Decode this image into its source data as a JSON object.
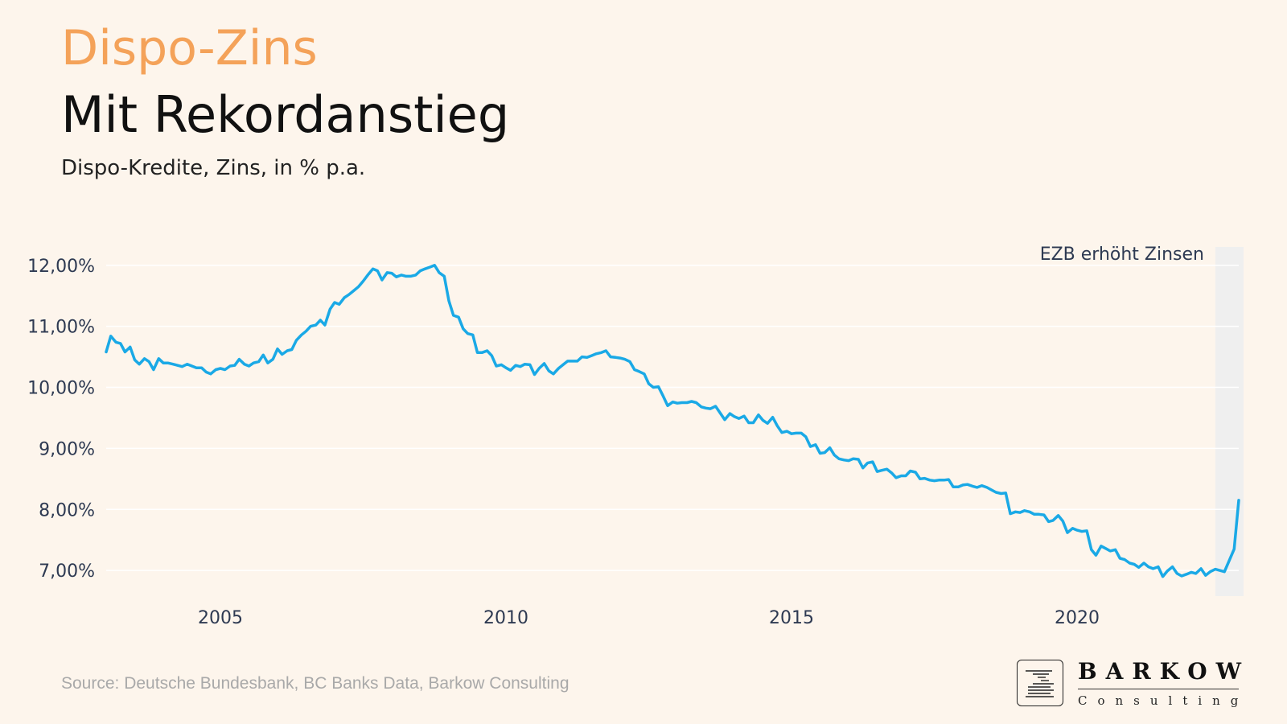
{
  "header": {
    "kicker": "Dispo-Zins",
    "title": "Mit Rekordanstieg",
    "subtitle": "Dispo-Kredite, Zins, in % p.a."
  },
  "footer": {
    "source": "Source: Deutsche Bundesbank, BC Banks Data, Barkow Consulting"
  },
  "logo": {
    "name": "BARKOW",
    "sub": "Consulting"
  },
  "colors": {
    "line": "#1aa9e6",
    "kicker": "#f4a259",
    "band": "#efefef",
    "background": "#fdf5ec",
    "axis_text": "#2e3a52"
  },
  "chart_data": {
    "type": "line",
    "title": "Mit Rekordanstieg",
    "subtitle": "Dispo-Kredite, Zins, in % p.a.",
    "xlabel": "",
    "ylabel": "",
    "xlim": [
      2003.0,
      2022.83
    ],
    "ylim": [
      6.58,
      12.3
    ],
    "yticks": [
      7,
      8,
      9,
      10,
      11,
      12
    ],
    "ytick_labels": [
      "7,00%",
      "8,00%",
      "9,00%",
      "10,00%",
      "11,00%",
      "12,00%"
    ],
    "xticks": [
      2005,
      2010,
      2015,
      2020
    ],
    "xtick_labels": [
      "2005",
      "2010",
      "2015",
      "2020"
    ],
    "grid": true,
    "annotation": {
      "text": "EZB erhöht Zinsen",
      "band_start": 2022.42,
      "band_end": 2022.83
    },
    "series": [
      {
        "name": "Dispo-Zins",
        "x": [
          2003.0,
          2003.08,
          2003.17,
          2003.25,
          2003.33,
          2003.42,
          2003.5,
          2003.58,
          2003.67,
          2003.75,
          2003.83,
          2003.92,
          2004.0,
          2004.08,
          2004.17,
          2004.25,
          2004.33,
          2004.42,
          2004.5,
          2004.58,
          2004.67,
          2004.75,
          2004.83,
          2004.92,
          2005.0,
          2005.08,
          2005.17,
          2005.25,
          2005.33,
          2005.42,
          2005.5,
          2005.58,
          2005.67,
          2005.75,
          2005.83,
          2005.92,
          2006.0,
          2006.08,
          2006.17,
          2006.25,
          2006.33,
          2006.42,
          2006.5,
          2006.58,
          2006.67,
          2006.75,
          2006.83,
          2006.92,
          2007.0,
          2007.08,
          2007.17,
          2007.25,
          2007.33,
          2007.42,
          2007.5,
          2007.58,
          2007.67,
          2007.75,
          2007.83,
          2007.92,
          2008.0,
          2008.08,
          2008.17,
          2008.25,
          2008.33,
          2008.42,
          2008.5,
          2008.58,
          2008.67,
          2008.75,
          2008.83,
          2008.92,
          2009.0,
          2009.08,
          2009.17,
          2009.25,
          2009.33,
          2009.42,
          2009.5,
          2009.58,
          2009.67,
          2009.75,
          2009.83,
          2009.92,
          2010.0,
          2010.08,
          2010.17,
          2010.25,
          2010.33,
          2010.42,
          2010.5,
          2010.58,
          2010.67,
          2010.75,
          2010.83,
          2010.92,
          2011.0,
          2011.08,
          2011.17,
          2011.25,
          2011.33,
          2011.42,
          2011.5,
          2011.58,
          2011.67,
          2011.75,
          2011.83,
          2011.92,
          2012.0,
          2012.08,
          2012.17,
          2012.25,
          2012.33,
          2012.42,
          2012.5,
          2012.58,
          2012.67,
          2012.75,
          2012.83,
          2012.92,
          2013.0,
          2013.08,
          2013.17,
          2013.25,
          2013.33,
          2013.42,
          2013.5,
          2013.58,
          2013.67,
          2013.75,
          2013.83,
          2013.92,
          2014.0,
          2014.08,
          2014.17,
          2014.25,
          2014.33,
          2014.42,
          2014.5,
          2014.58,
          2014.67,
          2014.75,
          2014.83,
          2014.92,
          2015.0,
          2015.08,
          2015.17,
          2015.25,
          2015.33,
          2015.42,
          2015.5,
          2015.58,
          2015.67,
          2015.75,
          2015.83,
          2015.92,
          2016.0,
          2016.08,
          2016.17,
          2016.25,
          2016.33,
          2016.42,
          2016.5,
          2016.58,
          2016.67,
          2016.75,
          2016.83,
          2016.92,
          2017.0,
          2017.08,
          2017.17,
          2017.25,
          2017.33,
          2017.42,
          2017.5,
          2017.58,
          2017.67,
          2017.75,
          2017.83,
          2017.92,
          2018.0,
          2018.08,
          2018.17,
          2018.25,
          2018.33,
          2018.42,
          2018.5,
          2018.58,
          2018.67,
          2018.75,
          2018.83,
          2018.92,
          2019.0,
          2019.08,
          2019.17,
          2019.25,
          2019.33,
          2019.42,
          2019.5,
          2019.58,
          2019.67,
          2019.75,
          2019.83,
          2019.92,
          2020.0,
          2020.08,
          2020.17,
          2020.25,
          2020.33,
          2020.42,
          2020.5,
          2020.58,
          2020.67,
          2020.75,
          2020.83,
          2020.92,
          2021.0,
          2021.08,
          2021.17,
          2021.25,
          2021.33,
          2021.42,
          2021.5,
          2021.58,
          2021.67,
          2021.75,
          2021.83,
          2021.92,
          2022.0,
          2022.08,
          2022.17,
          2022.25,
          2022.33,
          2022.42,
          2022.58,
          2022.75,
          2022.83
        ],
        "values": [
          10.58,
          10.84,
          10.74,
          10.72,
          10.58,
          10.66,
          10.45,
          10.38,
          10.47,
          10.42,
          10.29,
          10.47,
          10.4,
          10.4,
          10.38,
          10.36,
          10.34,
          10.38,
          10.35,
          10.32,
          10.32,
          10.25,
          10.22,
          10.29,
          10.31,
          10.29,
          10.35,
          10.36,
          10.46,
          10.38,
          10.35,
          10.4,
          10.42,
          10.53,
          10.4,
          10.46,
          10.63,
          10.54,
          10.6,
          10.62,
          10.77,
          10.86,
          10.92,
          11.0,
          11.02,
          11.1,
          11.02,
          11.28,
          11.39,
          11.36,
          11.47,
          11.52,
          11.58,
          11.65,
          11.74,
          11.84,
          11.94,
          11.91,
          11.76,
          11.88,
          11.87,
          11.81,
          11.84,
          11.82,
          11.82,
          11.84,
          11.91,
          11.94,
          11.97,
          12.0,
          11.88,
          11.82,
          11.42,
          11.18,
          11.15,
          10.96,
          10.88,
          10.86,
          10.57,
          10.57,
          10.6,
          10.52,
          10.35,
          10.37,
          10.32,
          10.28,
          10.36,
          10.34,
          10.38,
          10.37,
          10.21,
          10.31,
          10.39,
          10.27,
          10.22,
          10.31,
          10.37,
          10.43,
          10.43,
          10.43,
          10.5,
          10.49,
          10.52,
          10.55,
          10.57,
          10.6,
          10.5,
          10.49,
          10.48,
          10.46,
          10.42,
          10.29,
          10.26,
          10.22,
          10.06,
          10.0,
          10.01,
          9.86,
          9.7,
          9.76,
          9.74,
          9.75,
          9.75,
          9.77,
          9.75,
          9.68,
          9.66,
          9.65,
          9.69,
          9.58,
          9.47,
          9.57,
          9.52,
          9.49,
          9.53,
          9.42,
          9.42,
          9.55,
          9.46,
          9.41,
          9.51,
          9.37,
          9.26,
          9.28,
          9.24,
          9.25,
          9.25,
          9.19,
          9.03,
          9.06,
          8.92,
          8.93,
          9.01,
          8.89,
          8.83,
          8.81,
          8.8,
          8.83,
          8.82,
          8.68,
          8.76,
          8.78,
          8.62,
          8.64,
          8.66,
          8.6,
          8.52,
          8.55,
          8.55,
          8.63,
          8.61,
          8.5,
          8.51,
          8.48,
          8.47,
          8.48,
          8.48,
          8.49,
          8.37,
          8.37,
          8.4,
          8.41,
          8.38,
          8.36,
          8.39,
          8.36,
          8.32,
          8.28,
          8.26,
          8.27,
          7.93,
          7.96,
          7.95,
          7.98,
          7.96,
          7.92,
          7.92,
          7.91,
          7.8,
          7.82,
          7.9,
          7.81,
          7.62,
          7.69,
          7.66,
          7.64,
          7.65,
          7.34,
          7.25,
          7.4,
          7.36,
          7.32,
          7.34,
          7.2,
          7.18,
          7.12,
          7.1,
          7.05,
          7.12,
          7.06,
          7.03,
          7.06,
          6.9,
          6.99,
          7.06,
          6.95,
          6.91,
          6.94,
          6.97,
          6.95,
          7.03,
          6.92,
          6.98,
          7.02,
          6.98,
          7.35,
          8.15
        ]
      }
    ]
  }
}
